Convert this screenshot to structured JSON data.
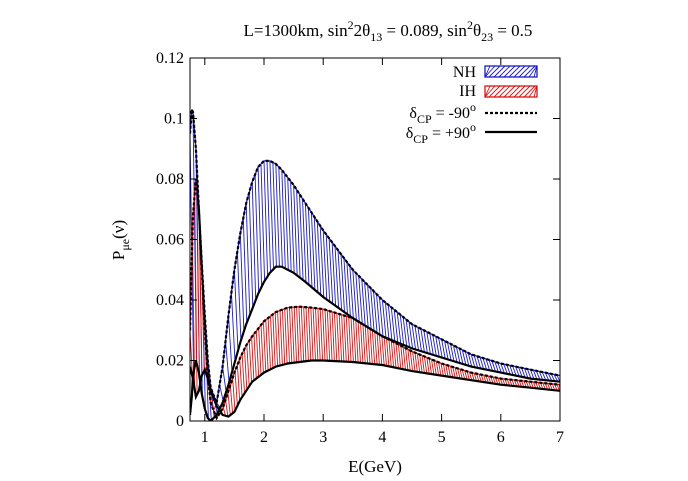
{
  "chart_data": {
    "type": "area",
    "title": "L=1300km, sin²2θ₁₃ = 0.089, sin²θ₂₃ = 0.5",
    "title_parts": {
      "p1": "L=1300km, sin",
      "sup1": "2",
      "p2": "2θ",
      "sub1": "13",
      "p3": " = 0.089, sin",
      "sup2": "2",
      "p4": "θ",
      "sub2": "23",
      "p5": " = 0.5"
    },
    "xlabel": "E(GeV)",
    "ylabel": "Pμe(ν)",
    "ylabel_parts": {
      "main": "P",
      "sub": "μe",
      "tail": "(ν)"
    },
    "xlim": [
      0.75,
      7
    ],
    "ylim": [
      0,
      0.12
    ],
    "xticks": [
      1,
      2,
      3,
      4,
      5,
      6,
      7
    ],
    "yticks": [
      0,
      0.02,
      0.04,
      0.06,
      0.08,
      0.1,
      0.12
    ],
    "xtick_labels": [
      "1",
      "2",
      "3",
      "4",
      "5",
      "6",
      "7"
    ],
    "ytick_labels": [
      "0",
      "0.02",
      "0.04",
      "0.06",
      "0.08",
      "0.1",
      "0.12"
    ],
    "grid": false,
    "legend_position": "top-right",
    "legend": [
      {
        "label": "NH",
        "style": "band-hatched",
        "color": "#1a1acc"
      },
      {
        "label": "IH",
        "style": "band-hatched",
        "color": "#dd1111"
      },
      {
        "label": "δCP = -90°",
        "style": "dashed",
        "color": "#000000",
        "main": "δ",
        "sub": "CP",
        "rest": " = -90",
        "sup": "o"
      },
      {
        "label": "δCP = +90°",
        "style": "solid",
        "color": "#000000",
        "main": "δ",
        "sub": "CP",
        "rest": " = +90",
        "sup": "o"
      }
    ],
    "series": [
      {
        "band": "NH",
        "color": "#1a1acc",
        "upper_x": [
          0.75,
          0.78,
          0.8,
          0.85,
          0.9,
          0.95,
          1.0,
          1.05,
          1.1,
          1.2,
          1.3,
          1.4,
          1.5,
          1.6,
          1.7,
          1.8,
          1.9,
          2.0,
          2.1,
          2.2,
          2.3,
          2.5,
          2.7,
          3.0,
          3.5,
          4.0,
          4.5,
          5.0,
          5.5,
          6.0,
          6.5,
          7.0
        ],
        "upper_y": [
          0.095,
          0.103,
          0.102,
          0.09,
          0.07,
          0.052,
          0.035,
          0.02,
          0.011,
          0.006,
          0.018,
          0.035,
          0.05,
          0.062,
          0.072,
          0.079,
          0.084,
          0.086,
          0.086,
          0.085,
          0.083,
          0.078,
          0.072,
          0.063,
          0.05,
          0.04,
          0.032,
          0.027,
          0.022,
          0.019,
          0.017,
          0.015
        ],
        "lower_x": [
          0.75,
          0.78,
          0.8,
          0.85,
          0.9,
          0.95,
          1.0,
          1.05,
          1.1,
          1.2,
          1.3,
          1.4,
          1.5,
          1.6,
          1.7,
          1.8,
          1.9,
          2.0,
          2.1,
          2.2,
          2.3,
          2.5,
          2.7,
          3.0,
          3.5,
          4.0,
          4.5,
          5.0,
          5.5,
          6.0,
          6.5,
          7.0
        ],
        "lower_y": [
          0.002,
          0.008,
          0.015,
          0.02,
          0.016,
          0.009,
          0.004,
          0.001,
          0.0,
          0.002,
          0.006,
          0.012,
          0.019,
          0.026,
          0.032,
          0.037,
          0.042,
          0.046,
          0.049,
          0.051,
          0.051,
          0.049,
          0.046,
          0.041,
          0.034,
          0.028,
          0.024,
          0.021,
          0.018,
          0.016,
          0.014,
          0.013
        ]
      },
      {
        "band": "IH",
        "color": "#dd1111",
        "upper_x": [
          0.75,
          0.8,
          0.85,
          0.9,
          0.95,
          1.0,
          1.05,
          1.1,
          1.2,
          1.3,
          1.4,
          1.5,
          1.6,
          1.7,
          1.8,
          2.0,
          2.2,
          2.4,
          2.6,
          2.8,
          3.0,
          3.5,
          4.0,
          4.5,
          5.0,
          5.5,
          6.0,
          6.5,
          7.0
        ],
        "upper_y": [
          0.03,
          0.068,
          0.08,
          0.07,
          0.05,
          0.03,
          0.015,
          0.006,
          0.001,
          0.004,
          0.01,
          0.016,
          0.021,
          0.025,
          0.028,
          0.033,
          0.036,
          0.0375,
          0.0378,
          0.0375,
          0.037,
          0.034,
          0.028,
          0.023,
          0.019,
          0.016,
          0.014,
          0.013,
          0.012
        ],
        "lower_x": [
          0.75,
          0.8,
          0.85,
          0.9,
          0.95,
          1.0,
          1.05,
          1.1,
          1.2,
          1.3,
          1.4,
          1.5,
          1.6,
          1.7,
          1.8,
          2.0,
          2.2,
          2.4,
          2.6,
          2.8,
          3.0,
          3.5,
          4.0,
          4.5,
          5.0,
          5.5,
          6.0,
          6.5,
          7.0
        ],
        "lower_y": [
          0.018,
          0.014,
          0.008,
          0.01,
          0.015,
          0.017,
          0.014,
          0.01,
          0.005,
          0.002,
          0.0015,
          0.003,
          0.007,
          0.01,
          0.013,
          0.016,
          0.018,
          0.019,
          0.0195,
          0.02,
          0.02,
          0.0195,
          0.0185,
          0.0165,
          0.015,
          0.0135,
          0.012,
          0.011,
          0.01
        ]
      },
      {
        "name": "δCP = -90°",
        "style": "dashed",
        "curves": [
          {
            "x": [
              0.75,
              0.78,
              0.8,
              0.85,
              0.9,
              0.95,
              1.0,
              1.05,
              1.1,
              1.2,
              1.3,
              1.4,
              1.5,
              1.6,
              1.7,
              1.8,
              1.9,
              2.0,
              2.1,
              2.2,
              2.3,
              2.5,
              2.7,
              3.0,
              3.5,
              4.0,
              4.5,
              5.0,
              5.5,
              6.0,
              6.5,
              7.0
            ],
            "y": [
              0.095,
              0.103,
              0.102,
              0.09,
              0.07,
              0.052,
              0.035,
              0.02,
              0.011,
              0.006,
              0.018,
              0.035,
              0.05,
              0.062,
              0.072,
              0.079,
              0.084,
              0.086,
              0.086,
              0.085,
              0.083,
              0.078,
              0.072,
              0.063,
              0.05,
              0.04,
              0.032,
              0.027,
              0.022,
              0.019,
              0.017,
              0.015
            ]
          },
          {
            "x": [
              0.75,
              0.8,
              0.85,
              0.9,
              0.95,
              1.0,
              1.05,
              1.1,
              1.2,
              1.3,
              1.4,
              1.5,
              1.6,
              1.7,
              1.8,
              2.0,
              2.2,
              2.4,
              2.6,
              2.8,
              3.0,
              3.5,
              4.0,
              4.5,
              5.0,
              5.5,
              6.0,
              6.5,
              7.0
            ],
            "y": [
              0.03,
              0.068,
              0.08,
              0.07,
              0.05,
              0.03,
              0.015,
              0.006,
              0.001,
              0.004,
              0.01,
              0.016,
              0.021,
              0.025,
              0.028,
              0.033,
              0.036,
              0.0375,
              0.0378,
              0.0375,
              0.037,
              0.034,
              0.028,
              0.023,
              0.019,
              0.016,
              0.014,
              0.013,
              0.012
            ]
          }
        ]
      },
      {
        "name": "δCP = +90°",
        "style": "solid",
        "curves": [
          {
            "x": [
              0.75,
              0.78,
              0.8,
              0.85,
              0.9,
              0.95,
              1.0,
              1.05,
              1.1,
              1.2,
              1.3,
              1.4,
              1.5,
              1.6,
              1.7,
              1.8,
              1.9,
              2.0,
              2.1,
              2.2,
              2.3,
              2.5,
              2.7,
              3.0,
              3.5,
              4.0,
              4.5,
              5.0,
              5.5,
              6.0,
              6.5,
              7.0
            ],
            "y": [
              0.002,
              0.008,
              0.015,
              0.02,
              0.016,
              0.009,
              0.004,
              0.001,
              0.0,
              0.002,
              0.006,
              0.012,
              0.019,
              0.026,
              0.032,
              0.037,
              0.042,
              0.046,
              0.049,
              0.051,
              0.051,
              0.049,
              0.046,
              0.041,
              0.034,
              0.028,
              0.024,
              0.021,
              0.018,
              0.016,
              0.014,
              0.013
            ]
          },
          {
            "x": [
              0.75,
              0.8,
              0.85,
              0.9,
              0.95,
              1.0,
              1.05,
              1.1,
              1.2,
              1.3,
              1.4,
              1.5,
              1.6,
              1.7,
              1.8,
              2.0,
              2.2,
              2.4,
              2.6,
              2.8,
              3.0,
              3.5,
              4.0,
              4.5,
              5.0,
              5.5,
              6.0,
              6.5,
              7.0
            ],
            "y": [
              0.018,
              0.014,
              0.008,
              0.01,
              0.015,
              0.017,
              0.014,
              0.01,
              0.005,
              0.002,
              0.0015,
              0.003,
              0.007,
              0.01,
              0.013,
              0.016,
              0.018,
              0.019,
              0.0195,
              0.02,
              0.02,
              0.0195,
              0.0185,
              0.0165,
              0.015,
              0.0135,
              0.012,
              0.011,
              0.01
            ]
          }
        ]
      }
    ]
  }
}
